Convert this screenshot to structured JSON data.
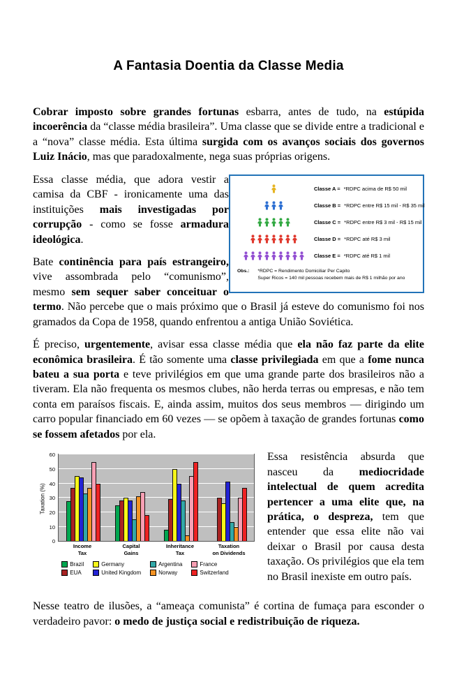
{
  "title": "A Fantasia Doentia da Classe Media",
  "paragraphs": {
    "p1": {
      "s0": "Cobrar imposto sobre grandes fortunas",
      "s1": " esbarra, antes de tudo, na ",
      "s2": "estúpida incoerência",
      "s3": " da “classe média brasileira”. Uma classe que se divide entre a tradicional e a “nova” classe média. Esta última ",
      "s4": "surgida com os avanços sociais dos governos Luiz Inácio",
      "s5": ", mas que paradoxalmente, nega suas próprias origens."
    },
    "p2": {
      "s0": "Essa classe média, que adora vestir a camisa da CBF - ironicamente uma das instituições ",
      "s1": "mais investigadas por corrupção",
      "s2": " - como se fosse ",
      "s3": "armadura ideológica",
      "s4": "."
    },
    "p3": {
      "s0": "Bate ",
      "s1": "continência para país estrangeiro,",
      "s2": " vive assombrada pelo “comunismo”, mesmo ",
      "s3": "sem sequer saber conceituar o termo",
      "s4": ". Não percebe que o mais próximo que o Brasil já esteve do comunismo foi nos gramados da Copa de 1958, quando enfrentou a antiga União Soviética."
    },
    "p4": {
      "s0": "É preciso, ",
      "s1": "urgentemente",
      "s2": ", avisar essa classe média que ",
      "s3": "ela não faz parte da elite econômica brasileira",
      "s4": ". É tão somente uma ",
      "s5": "classe privilegiada",
      "s6": " em que a ",
      "s7": "fome nunca bateu a sua porta",
      "s8": " e teve privilégios em que uma grande parte dos brasileiros não a tiveram. Ela não frequenta os mesmos clubes, não herda terras ou empresas, e não tem conta em paraísos fiscais. E, ainda assim, muitos dos seus membros — dirigindo um carro popular financiado em 60 vezes — se opõem à taxação de grandes fortunas ",
      "s9": "como se fossem afetados",
      "s10": " por ela."
    },
    "p5": {
      "s0": "Essa resistência absurda que nasceu da ",
      "s1": "mediocridade intelectual de quem acredita pertencer a uma elite que, na prática, o despreza,",
      "s2": " tem que entender que essa elite não vai deixar o Brasil por causa desta taxação. Os privilégios que ela tem no Brasil inexiste em outro país."
    },
    "p6": {
      "s0": "Nesse teatro de ilusões, a “ameaça comunista” é cortina de fumaça para esconder o verdadeiro pavor: ",
      "s1": "o medo de justiça social e redistribuição de riqueza."
    }
  },
  "pyramid": {
    "border_color": "#2273b8",
    "rows": [
      {
        "label_bold": "Classe A =",
        "label_rest": "*RDPC acima de R$ 50 mil",
        "count": 1,
        "color": "#e6b422"
      },
      {
        "label_bold": "Classe B =",
        "label_rest": "*RDPC entre R$ 15 mil - R$ 35 mil",
        "count": 3,
        "color": "#2d6fd2"
      },
      {
        "label_bold": "Classe C =",
        "label_rest": "*RDPC entre R$ 3 mil - R$ 15 mil",
        "count": 5,
        "color": "#33a943"
      },
      {
        "label_bold": "Classe D =",
        "label_rest": "*RDPC até R$ 3 mil",
        "count": 7,
        "color": "#e0392e"
      },
      {
        "label_bold": "Classe E =",
        "label_rest": "*RDPC até R$ 1 mil",
        "count": 9,
        "color": "#9350d2"
      }
    ],
    "obs_prefix": "Obs.:",
    "obs_line1": "*RDPC = Rendimento Domiciliar Per Capito",
    "obs_line2": "Super Ricos = 140 mil pessoas recebem mais de R$ 1 milhão por ano"
  },
  "chart_data": {
    "type": "bar",
    "title": "",
    "xlabel": "",
    "ylabel": "Taxation (%)",
    "ylim": [
      0,
      60
    ],
    "yticks": [
      0,
      10,
      20,
      30,
      40,
      50,
      60
    ],
    "grid": true,
    "legend_position": "bottom",
    "plot_background": "#bfbfbf",
    "categories": [
      "Income Tax",
      "Capital Gains",
      "Inheritance Tax",
      "Taxation on Dividends"
    ],
    "category_lines": [
      [
        "Income",
        "Tax"
      ],
      [
        "Capital",
        "Gains"
      ],
      [
        "Inheritance",
        "Tax"
      ],
      [
        "Taxation",
        "on Dividends"
      ]
    ],
    "series": [
      {
        "name": "Brazil",
        "color": "#00a650",
        "values": [
          27.5,
          25,
          8,
          0
        ]
      },
      {
        "name": "EUA",
        "color": "#a82222",
        "values": [
          37,
          28,
          29,
          30
        ]
      },
      {
        "name": "Germany",
        "color": "#f7f719",
        "values": [
          45,
          30,
          50,
          26
        ]
      },
      {
        "name": "United Kingdom",
        "color": "#2323d5",
        "values": [
          44,
          28,
          40,
          41
        ]
      },
      {
        "name": "Argentina",
        "color": "#31a8a8",
        "values": [
          33,
          15,
          28,
          13
        ]
      },
      {
        "name": "Norway",
        "color": "#f59324",
        "values": [
          37,
          31,
          4,
          10
        ]
      },
      {
        "name": "France",
        "color": "#f8a0b4",
        "values": [
          55,
          34,
          45,
          30
        ]
      },
      {
        "name": "Switzerland",
        "color": "#ee2222",
        "values": [
          40,
          18,
          55,
          37
        ]
      }
    ],
    "legend_rows": [
      [
        "Brazil",
        "Germany",
        "Argentina",
        "France"
      ],
      [
        "EUA",
        "United Kingdom",
        "Norway",
        "Switzerland"
      ]
    ]
  }
}
